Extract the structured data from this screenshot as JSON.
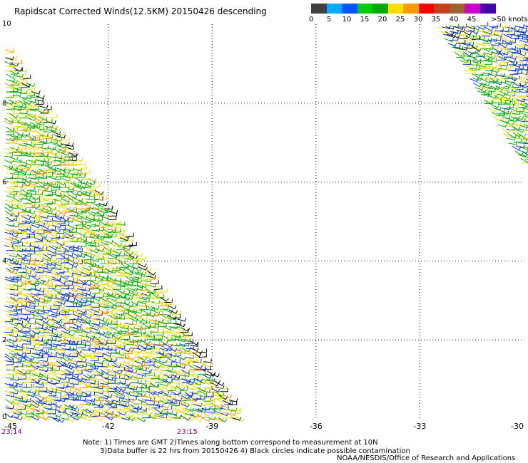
{
  "title": "Rapidscat Corrected Winds(12.5KM) 20150426 descending",
  "legend": {
    "labels": [
      "0",
      "5",
      "10",
      "15",
      "20",
      "25",
      "30",
      "35",
      "40",
      "45",
      ">50 knots"
    ],
    "colors": [
      "#404040",
      "#00aaff",
      "#0055ff",
      "#00cc00",
      "#00aa00",
      "#ffdd00",
      "#ff9900",
      "#ff0000",
      "#c04020",
      "#a06030",
      "#cc00cc",
      "#4400aa"
    ]
  },
  "axes": {
    "x_ticks": [
      "-45",
      "-42",
      "-39",
      "-36",
      "-33",
      "-30"
    ],
    "y_ticks": [
      "0",
      "2",
      "4",
      "6",
      "8",
      "10"
    ]
  },
  "times": [
    "23:14",
    "23:15"
  ],
  "notes": [
    "Note: 1) Times are GMT 2)Times along bottom correspond to measurement at 10N",
    "3)Data buffer is 22 hrs from 20150426 4) Black circles indicate possible contamination"
  ],
  "credit": "NOAA/NESDIS/Office of Research and Applications",
  "colors": {
    "low": "#0033cc",
    "mid": "#00aa00",
    "high": "#e8e000",
    "strong": "#ff8c00",
    "rain": "#000000"
  }
}
